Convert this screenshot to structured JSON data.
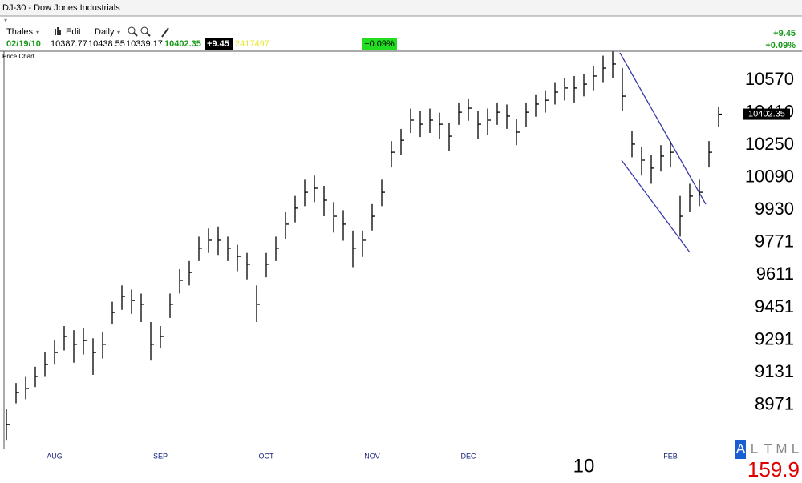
{
  "header": {
    "title": "DJ-30 - Dow Jones Industrials",
    "toolbar": [
      "Thales",
      "Edit",
      "Daily"
    ],
    "date": "02/19/10",
    "open": "10387.77",
    "high": "10438.55",
    "low": "10339.17",
    "last": "10402.35",
    "change": "+9.45",
    "volume": "2417497",
    "change_pct": "+0.09%",
    "right_change": "+9.45",
    "right_change_pct": "+0.09%",
    "panel": "Price Chart",
    "scale_buttons": [
      "A",
      "L",
      "T",
      "M",
      "L"
    ],
    "footer_value": "159.9"
  },
  "chart_data": {
    "type": "ohlc",
    "categories": [
      null,
      null,
      null,
      null,
      null,
      "AUG",
      null,
      null,
      null,
      null,
      null,
      null,
      null,
      null,
      null,
      null,
      "SEP",
      null,
      null,
      null,
      null,
      null,
      null,
      null,
      null,
      null,
      null,
      "OCT",
      null,
      null,
      null,
      null,
      null,
      null,
      null,
      null,
      null,
      null,
      "NOV",
      null,
      null,
      null,
      null,
      null,
      null,
      null,
      null,
      null,
      "DEC",
      null,
      null,
      null,
      null,
      null,
      null,
      null,
      null,
      null,
      null,
      null,
      "10",
      null,
      null,
      null,
      null,
      null,
      null,
      null,
      null,
      "FEB",
      null,
      null,
      null,
      null,
      null
    ],
    "high": [
      8950,
      9080,
      9110,
      9160,
      9230,
      9290,
      9360,
      9340,
      9350,
      9300,
      9330,
      9480,
      9560,
      9540,
      9520,
      9380,
      9360,
      9520,
      9640,
      9680,
      9800,
      9840,
      9850,
      9800,
      9760,
      9720,
      9560,
      9720,
      9800,
      9920,
      10000,
      10080,
      10100,
      10050,
      9970,
      9930,
      9830,
      9830,
      9960,
      10080,
      10270,
      10330,
      10430,
      10420,
      10430,
      10410,
      10360,
      10460,
      10480,
      10420,
      10430,
      10460,
      10450,
      10380,
      10460,
      10500,
      10520,
      10560,
      10580,
      10590,
      10600,
      10640,
      10690,
      10710,
      10630,
      10320,
      10240,
      10200,
      10250,
      10270,
      10000,
      10060,
      10080,
      10270,
      10438.55
    ],
    "low": [
      8800,
      8980,
      9000,
      9060,
      9110,
      9170,
      9240,
      9180,
      9220,
      9120,
      9200,
      9370,
      9440,
      9420,
      9380,
      9190,
      9250,
      9400,
      9520,
      9560,
      9680,
      9720,
      9710,
      9680,
      9630,
      9590,
      9380,
      9600,
      9680,
      9790,
      9870,
      9950,
      9970,
      9900,
      9820,
      9780,
      9650,
      9700,
      9830,
      9950,
      10140,
      10200,
      10310,
      10290,
      10310,
      10280,
      10220,
      10350,
      10370,
      10280,
      10300,
      10350,
      10330,
      10250,
      10340,
      10390,
      10410,
      10450,
      10470,
      10460,
      10490,
      10520,
      10560,
      10580,
      10420,
      10190,
      10100,
      10060,
      10120,
      10140,
      9800,
      9920,
      9950,
      10140,
      10339.17
    ],
    "close": [
      8876,
      9033,
      9053,
      9112,
      9171,
      9230,
      9309,
      9270,
      9289,
      9230,
      9270,
      9427,
      9506,
      9486,
      9467,
      9270,
      9309,
      9467,
      9585,
      9624,
      9743,
      9782,
      9782,
      9743,
      9703,
      9664,
      9467,
      9664,
      9743,
      9861,
      9940,
      10018,
      10038,
      9979,
      9900,
      9861,
      9743,
      9782,
      9900,
      10018,
      10215,
      10274,
      10373,
      10353,
      10373,
      10353,
      10294,
      10412,
      10432,
      10353,
      10373,
      10412,
      10393,
      10314,
      10412,
      10452,
      10471,
      10511,
      10531,
      10531,
      10550,
      10590,
      10629,
      10649,
      10491,
      10255,
      10176,
      10137,
      10196,
      10215,
      9900,
      9999,
      10018,
      10215,
      10402.35
    ],
    "color": "#000000",
    "ylim": [
      8777,
      10708
    ],
    "yticks": [
      8971,
      9131,
      9291,
      9451,
      9611,
      9771,
      9930,
      10090,
      10250,
      10410,
      10570
    ],
    "grid": false
  }
}
